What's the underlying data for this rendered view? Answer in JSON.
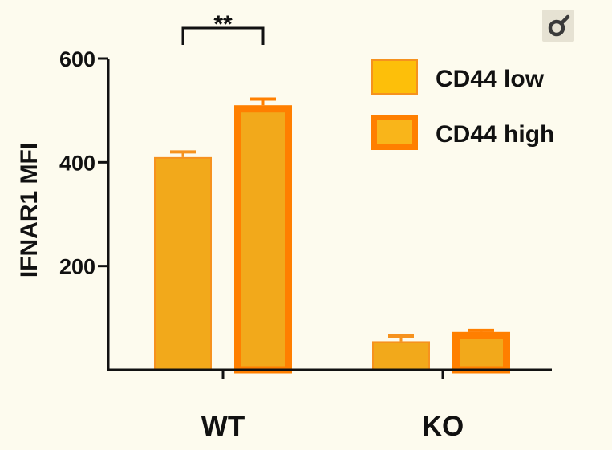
{
  "chart_data": {
    "type": "bar",
    "categories": [
      "WT",
      "KO"
    ],
    "ylabel": "IFNAR1 MFI",
    "xlabel": "",
    "ylim": [
      0,
      600
    ],
    "yticks": [
      200,
      400,
      600
    ],
    "series": [
      {
        "name": "CD44 low",
        "values": [
          410,
          55
        ],
        "errors": [
          10,
          10
        ]
      },
      {
        "name": "CD44 high",
        "values": [
          510,
          73
        ],
        "errors": [
          12,
          3
        ]
      }
    ],
    "annotations": [
      {
        "text": "**",
        "between": [
          "WT / CD44 low",
          "WT / CD44 high"
        ]
      }
    ],
    "legend_position": "top-right"
  },
  "colors": {
    "bar_fill": "#f2a91b",
    "low_border": "#f6921e",
    "high_border": "#ff7f00",
    "legend_low_fill": "#fdbf0a",
    "legend_high_fill": "#f9b51a",
    "axis": "#111111",
    "background": "#fdfbee"
  },
  "icons": {
    "corner_badge": "female-symbol-icon"
  }
}
